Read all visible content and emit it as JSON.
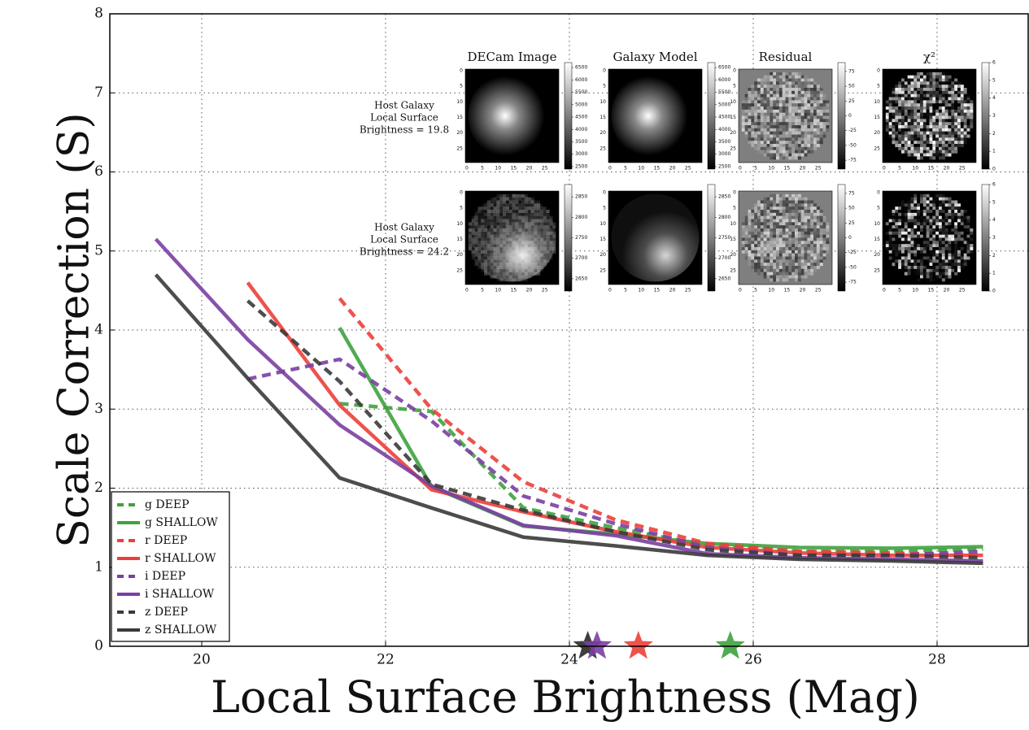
{
  "chart_data": {
    "type": "line",
    "xlabel": "Local Surface Brightness (Mag)",
    "ylabel": "Scale Correction (S)",
    "xlim": [
      19,
      29
    ],
    "ylim": [
      0,
      8
    ],
    "xticks": [
      20,
      22,
      24,
      26,
      28
    ],
    "yticks": [
      0,
      1,
      2,
      3,
      4,
      5,
      6,
      7,
      8
    ],
    "grid": true,
    "legend": "lower left",
    "x": [
      19.5,
      20.5,
      21.5,
      22.5,
      23.5,
      24.5,
      25.5,
      26.5,
      27.5,
      28.5
    ],
    "series": [
      {
        "name": "g DEEP",
        "color": "#3fa23f",
        "dashed": true,
        "values": [
          null,
          null,
          3.07,
          2.97,
          1.75,
          1.5,
          1.27,
          1.2,
          1.2,
          1.23
        ]
      },
      {
        "name": "g SHALLOW",
        "color": "#3fa23f",
        "dashed": false,
        "values": [
          null,
          null,
          4.03,
          2.02,
          1.52,
          1.42,
          1.3,
          1.25,
          1.24,
          1.26
        ]
      },
      {
        "name": "r DEEP",
        "color": "#ec3f3a",
        "dashed": true,
        "values": [
          null,
          null,
          4.4,
          3.0,
          2.08,
          1.6,
          1.3,
          1.2,
          1.18,
          1.15
        ]
      },
      {
        "name": "r SHALLOW",
        "color": "#ec3f3a",
        "dashed": false,
        "values": [
          null,
          4.6,
          3.05,
          1.98,
          1.7,
          1.45,
          1.25,
          1.18,
          1.15,
          1.15
        ]
      },
      {
        "name": "i DEEP",
        "color": "#7a3fa2",
        "dashed": true,
        "values": [
          null,
          3.38,
          3.63,
          2.85,
          1.9,
          1.55,
          1.25,
          1.15,
          1.15,
          1.2
        ]
      },
      {
        "name": "i SHALLOW",
        "color": "#7a3fa2",
        "dashed": false,
        "values": [
          5.15,
          3.88,
          2.8,
          2.03,
          1.53,
          1.4,
          1.17,
          1.12,
          1.1,
          1.08
        ]
      },
      {
        "name": "z DEEP",
        "color": "#3a3a3a",
        "dashed": true,
        "values": [
          null,
          4.37,
          3.35,
          2.05,
          1.72,
          1.45,
          1.22,
          1.15,
          1.15,
          1.12
        ]
      },
      {
        "name": "z SHALLOW",
        "color": "#3a3a3a",
        "dashed": false,
        "values": [
          4.7,
          3.39,
          2.13,
          1.75,
          1.38,
          1.27,
          1.15,
          1.1,
          1.08,
          1.05
        ]
      }
    ],
    "stars": {
      "x": [
        24.2,
        24.3,
        24.75,
        25.75
      ],
      "y": [
        0,
        0,
        0,
        0
      ],
      "colors": [
        "#2a2a2a",
        "#7a3fa2",
        "#ec3f3a",
        "#3fa23f"
      ]
    },
    "inset": {
      "columns": [
        "DECam Image",
        "Galaxy Model",
        "Residual",
        "χ²"
      ],
      "image_extent": [
        -0.5,
        29.5
      ],
      "image_xticks": [
        0,
        5,
        10,
        15,
        20,
        25
      ],
      "image_yticks": [
        0,
        5,
        10,
        15,
        20,
        25
      ],
      "rows": [
        {
          "label": [
            "Host Galaxy",
            "Local Surface",
            "Brightness = 19.8"
          ],
          "colorbars": [
            {
              "clim": [
                2400,
                6700
              ],
              "ticks": [
                6500,
                6000,
                5500,
                5000,
                4500,
                4000,
                3500,
                3000,
                2500
              ]
            },
            {
              "clim": [
                2400,
                6700
              ],
              "ticks": [
                6500,
                6000,
                5500,
                5000,
                4500,
                4000,
                3500,
                3000,
                2500
              ]
            },
            {
              "clim": [
                -90,
                90
              ],
              "ticks": [
                75,
                50,
                25,
                0,
                -25,
                -50,
                -75
              ]
            },
            {
              "clim": [
                0,
                6
              ],
              "ticks": [
                6,
                5,
                4,
                3,
                2,
                1,
                0
              ]
            }
          ]
        },
        {
          "label": [
            "Host Galaxy",
            "Local Surface",
            "Brightness = 24.2"
          ],
          "colorbars": [
            {
              "clim": [
                2620,
                2880
              ],
              "ticks": [
                2850,
                2800,
                2750,
                2700,
                2650
              ]
            },
            {
              "clim": [
                2620,
                2880
              ],
              "ticks": [
                2850,
                2800,
                2750,
                2700,
                2650
              ]
            },
            {
              "clim": [
                -90,
                90
              ],
              "ticks": [
                75,
                50,
                25,
                0,
                -25,
                -50,
                -75
              ]
            },
            {
              "clim": [
                0,
                6
              ],
              "ticks": [
                6,
                5,
                4,
                3,
                2,
                1,
                0
              ]
            }
          ]
        }
      ]
    }
  }
}
